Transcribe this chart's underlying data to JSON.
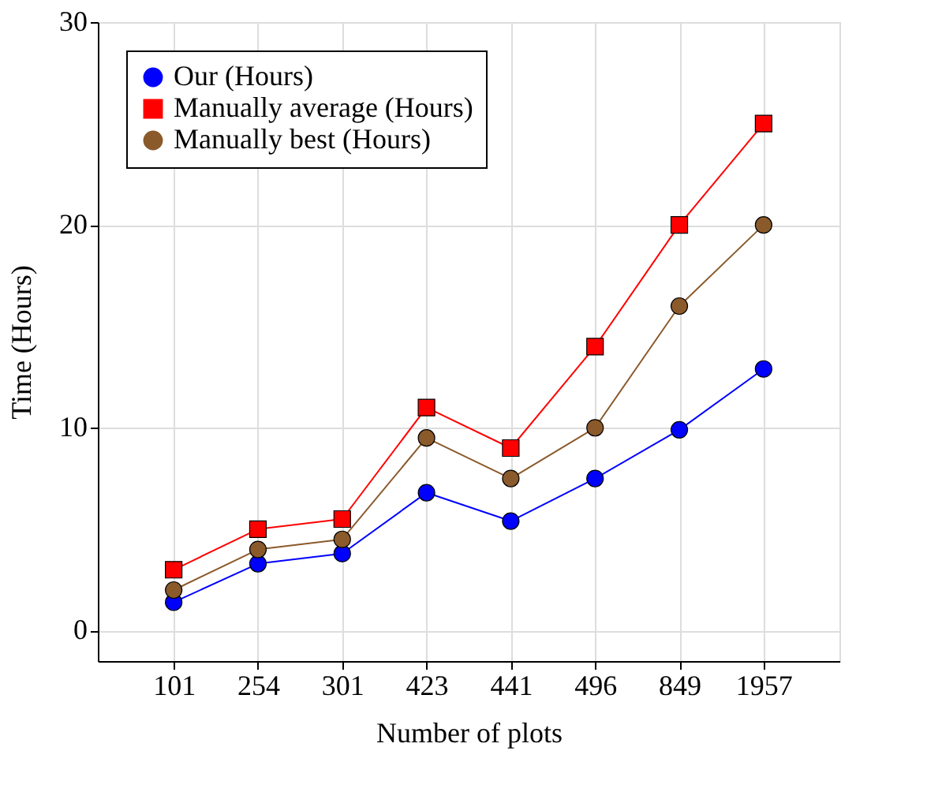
{
  "chart_data": {
    "type": "line",
    "xlabel": "Number of plots",
    "ylabel": "Time (Hours)",
    "categories": [
      "101",
      "254",
      "301",
      "423",
      "441",
      "496",
      "849",
      "1957"
    ],
    "series": [
      {
        "name": "Our (Hours)",
        "color": "#0000ff",
        "marker": "circle",
        "values": [
          1.4,
          3.3,
          3.8,
          6.8,
          5.4,
          7.5,
          9.9,
          12.9
        ]
      },
      {
        "name": "Manually average (Hours)",
        "color": "#ff0000",
        "marker": "square",
        "values": [
          3,
          5,
          5.5,
          11,
          9,
          14,
          20,
          25
        ]
      },
      {
        "name": "Manually best (Hours)",
        "color": "#8b5a2b",
        "marker": "circle",
        "values": [
          2,
          4,
          4.5,
          9.5,
          7.5,
          10,
          16,
          20
        ]
      }
    ],
    "ylim": [
      -1.5,
      30
    ],
    "yticks": [
      0,
      10,
      20,
      30
    ],
    "grid": true,
    "legend": "top left",
    "line_style": "solid"
  }
}
